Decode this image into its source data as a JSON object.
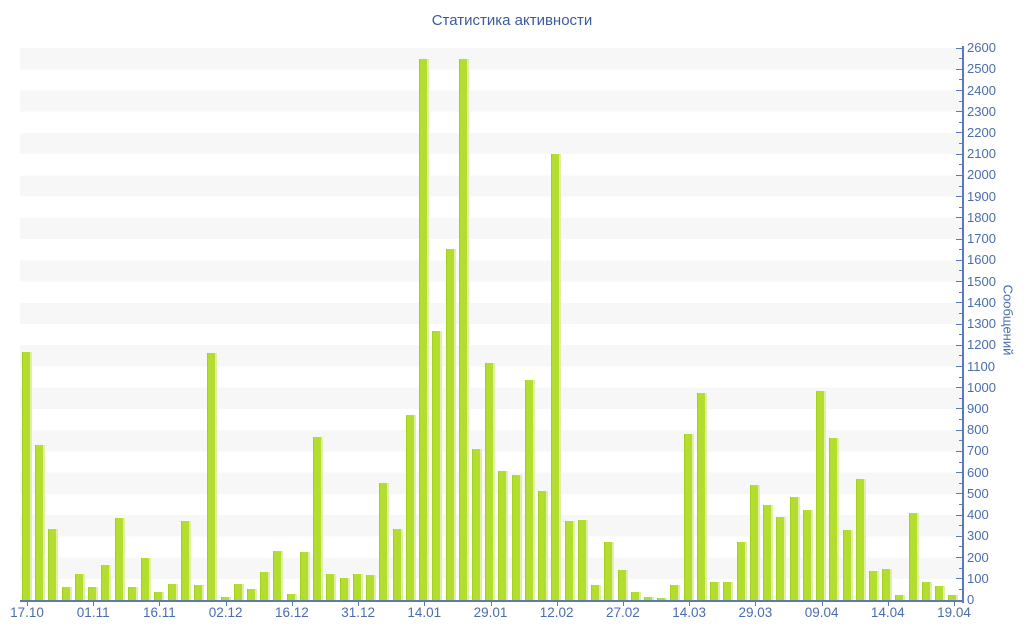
{
  "chart": {
    "title": "Статистика активности",
    "ylabel": "Сообщений"
  },
  "chart_data": {
    "type": "bar",
    "title": "Статистика активности",
    "xlabel": "",
    "ylabel": "Сообщений",
    "ylim": [
      0,
      2600
    ],
    "y_tick_step": 100,
    "y_minor_tick_step": 50,
    "grid": "horizontal-bands",
    "legend": "none",
    "bars_per_x_tick": 5,
    "x_tick_labels": [
      "17.10",
      "01.11",
      "16.11",
      "02.12",
      "16.12",
      "31.12",
      "14.01",
      "29.01",
      "12.02",
      "27.02",
      "14.03",
      "29.03",
      "09.04",
      "14.04",
      "19.04"
    ],
    "values": [
      1170,
      730,
      335,
      60,
      125,
      60,
      165,
      385,
      60,
      200,
      40,
      75,
      370,
      70,
      1165,
      15,
      75,
      50,
      130,
      230,
      30,
      225,
      770,
      125,
      105,
      125,
      120,
      550,
      335,
      870,
      2550,
      1265,
      1655,
      2550,
      710,
      1115,
      610,
      590,
      1035,
      515,
      2100,
      370,
      375,
      70,
      275,
      140,
      40,
      15,
      10,
      70,
      780,
      975,
      85,
      85,
      275,
      540,
      450,
      390,
      485,
      425,
      985,
      765,
      330,
      570,
      135,
      145,
      25,
      410,
      85,
      65,
      25
    ],
    "colors": {
      "bar": "#b3de2f",
      "bar_highlight": "#dff0a4",
      "bar_shadow_edge": "#a3cf1f",
      "axis": "#5b79bd",
      "labels": "#4a6dad",
      "title": "#3c5a9e",
      "band_gray": "#f7f7f8",
      "band_white": "#ffffff",
      "background": "#ffffff"
    }
  }
}
